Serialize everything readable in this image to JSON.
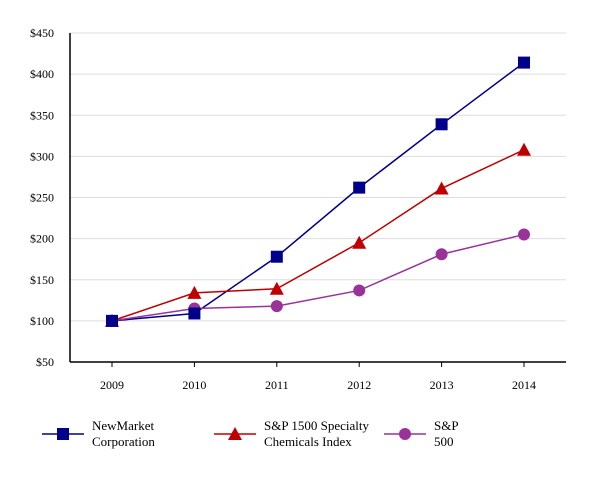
{
  "chart_data": {
    "type": "line",
    "categories": [
      "2009",
      "2010",
      "2011",
      "2012",
      "2013",
      "2014"
    ],
    "y_ticks": [
      "$50",
      "$100",
      "$150",
      "$200",
      "$250",
      "$300",
      "$350",
      "$400",
      "$450"
    ],
    "ylim": [
      50,
      450
    ],
    "grid": true,
    "legend_placement": "bottom",
    "series": [
      {
        "name": "NewMarket Corporation",
        "label_lines": [
          "NewMarket",
          "Corporation"
        ],
        "color": "#00008b",
        "marker": "square",
        "values": [
          100,
          109,
          178,
          262,
          339,
          414
        ]
      },
      {
        "name": "S&P 1500 Specialty Chemicals Index",
        "label_lines": [
          "S&P 1500 Specialty",
          "Chemicals Index"
        ],
        "color": "#c00000",
        "marker": "triangle",
        "values": [
          100,
          134,
          139,
          195,
          261,
          308
        ]
      },
      {
        "name": "S&P 500",
        "label_lines": [
          "S&P",
          "500"
        ],
        "color": "#993399",
        "marker": "circle",
        "values": [
          100,
          115,
          118,
          137,
          181,
          205
        ]
      }
    ]
  }
}
